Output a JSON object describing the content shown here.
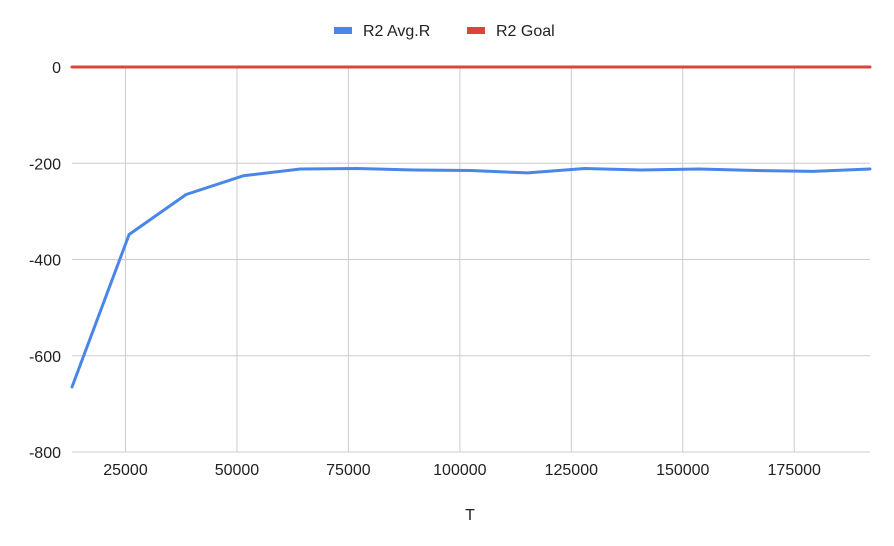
{
  "chart_data": {
    "type": "line",
    "xlabel": "T",
    "ylabel": "",
    "title": "",
    "xlim": [
      13000,
      192000
    ],
    "ylim": [
      -800,
      0
    ],
    "x_ticks": [
      25000,
      50000,
      75000,
      100000,
      125000,
      150000,
      175000
    ],
    "y_ticks": [
      0,
      -200,
      -400,
      -600,
      -800
    ],
    "grid": true,
    "legend_position": "top",
    "series": [
      {
        "name": "R2 Avg.R",
        "color": "#4a86e8",
        "x": [
          13000,
          25800,
          38600,
          51400,
          64200,
          76800,
          89600,
          102400,
          115200,
          128000,
          140800,
          153600,
          166400,
          179200,
          192000
        ],
        "y": [
          -665,
          -348,
          -265,
          -226,
          -212,
          -211,
          -214,
          -215,
          -220,
          -211,
          -214,
          -212,
          -215,
          -217,
          -212
        ]
      },
      {
        "name": "R2 Goal",
        "color": "#db4437",
        "x": [
          13000,
          192000
        ],
        "y": [
          0,
          0
        ]
      }
    ]
  }
}
